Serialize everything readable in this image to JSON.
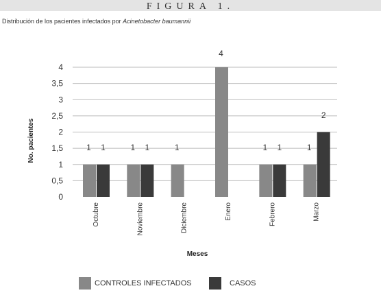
{
  "figure_label": "Figura 1.",
  "subtitle": {
    "text": "Distribución de los pacientes infectados por ",
    "italic": "Acinetobacter baumannii"
  },
  "colors": {
    "controles": "#888888",
    "casos": "#3a3a3a",
    "grid": "#bbbbbb",
    "plot_bg": "#ffffff"
  },
  "chart_data": {
    "type": "bar",
    "xlabel": "Meses",
    "ylabel": "No. pacientes",
    "ylim": [
      0,
      4
    ],
    "yticks": [
      "0",
      "0,5",
      "1",
      "1,5",
      "2",
      "2,5",
      "3",
      "3,5",
      "4"
    ],
    "grid": true,
    "categories": [
      "Octubre",
      "Noviembre",
      "Diciembre",
      "Enero",
      "Febrero",
      "Marzo"
    ],
    "series": [
      {
        "name": "CONTROLES INFECTADOS",
        "values": [
          1,
          1,
          1,
          4,
          1,
          1
        ],
        "labels": [
          "1",
          "1",
          "1",
          "4",
          "1",
          "1"
        ]
      },
      {
        "name": "CASOS",
        "values": [
          1,
          1,
          null,
          null,
          1,
          2
        ],
        "labels": [
          "1",
          "1",
          "",
          "",
          "1",
          "2"
        ]
      }
    ],
    "legend_position": "bottom"
  }
}
